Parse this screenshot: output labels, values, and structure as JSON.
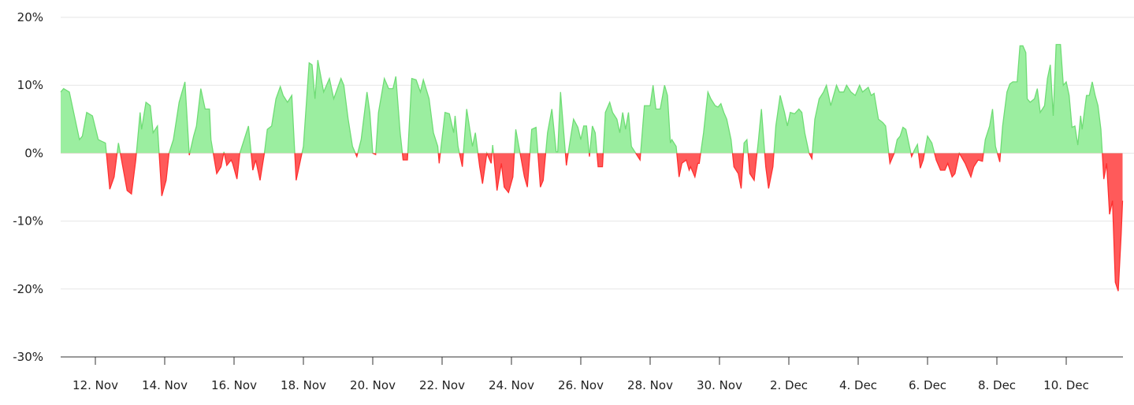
{
  "chart_data": {
    "type": "area",
    "title": "",
    "xlabel": "",
    "ylabel": "",
    "ylim": [
      -30,
      20
    ],
    "y_unit": "%",
    "y_ticks": [
      "20%",
      "10%",
      "0%",
      "-10%",
      "-20%",
      "-30%"
    ],
    "y_tick_values": [
      20,
      10,
      0,
      -10,
      -20,
      -30
    ],
    "x_ticks": [
      "12. Nov",
      "14. Nov",
      "16. Nov",
      "18. Nov",
      "20. Nov",
      "22. Nov",
      "24. Nov",
      "26. Nov",
      "28. Nov",
      "30. Nov",
      "2. Dec",
      "4. Dec",
      "6. Dec",
      "8. Dec",
      "10. Dec"
    ],
    "x_range": [
      "11 Nov 00:00",
      "11 Dec 15:00"
    ],
    "grid": true,
    "legend": "none",
    "colors": {
      "positive_fill": "#9beea0",
      "positive_line": "#6fdc75",
      "negative_fill": "#ff5a5a",
      "negative_line": "#ff3030",
      "grid": "#e6e6e6",
      "axis": "#333333"
    },
    "points": [
      [
        "11 Nov 00:00",
        9
      ],
      [
        "11 Nov 02:00",
        9.5
      ],
      [
        "11 Nov 06:00",
        9
      ],
      [
        "11 Nov 10:00",
        5
      ],
      [
        "11 Nov 13:00",
        2
      ],
      [
        "11 Nov 15:00",
        2.5
      ],
      [
        "11 Nov 18:00",
        6
      ],
      [
        "11 Nov 22:00",
        5.5
      ],
      [
        "12 Nov 02:00",
        2
      ],
      [
        "12 Nov 07:00",
        1.5
      ],
      [
        "12 Nov 10:00",
        -5.3
      ],
      [
        "12 Nov 13:00",
        -3.5
      ],
      [
        "12 Nov 16:00",
        1.5
      ],
      [
        "12 Nov 19:00",
        -2
      ],
      [
        "12 Nov 22:00",
        -5.5
      ],
      [
        "13 Nov 01:00",
        -6
      ],
      [
        "13 Nov 04:00",
        -1
      ],
      [
        "13 Nov 07:00",
        6
      ],
      [
        "13 Nov 08:00",
        3.5
      ],
      [
        "13 Nov 11:00",
        7.5
      ],
      [
        "13 Nov 14:00",
        7
      ],
      [
        "13 Nov 16:00",
        3
      ],
      [
        "13 Nov 19:00",
        4
      ],
      [
        "13 Nov 22:00",
        -6.3
      ],
      [
        "14 Nov 01:00",
        -4
      ],
      [
        "14 Nov 03:00",
        0
      ],
      [
        "14 Nov 06:00",
        2
      ],
      [
        "14 Nov 10:00",
        7.5
      ],
      [
        "14 Nov 14:00",
        10.5
      ],
      [
        "14 Nov 17:00",
        -0.3
      ],
      [
        "14 Nov 20:00",
        2.5
      ],
      [
        "14 Nov 22:00",
        4
      ],
      [
        "15 Nov 01:00",
        9.5
      ],
      [
        "15 Nov 04:00",
        6.5
      ],
      [
        "15 Nov 07:00",
        6.5
      ],
      [
        "15 Nov 08:00",
        2
      ],
      [
        "15 Nov 12:00",
        -3
      ],
      [
        "15 Nov 15:00",
        -2
      ],
      [
        "15 Nov 17:00",
        0.2
      ],
      [
        "15 Nov 19:00",
        -1.8
      ],
      [
        "15 Nov 22:00",
        -1
      ],
      [
        "15 Nov 23:00",
        -1.5
      ],
      [
        "16 Nov 02:00",
        -3.8
      ],
      [
        "16 Nov 04:00",
        0
      ],
      [
        "16 Nov 07:00",
        2
      ],
      [
        "16 Nov 10:00",
        4
      ],
      [
        "16 Nov 13:00",
        -2.5
      ],
      [
        "16 Nov 15:00",
        -1
      ],
      [
        "16 Nov 18:00",
        -4
      ],
      [
        "16 Nov 21:00",
        0
      ],
      [
        "16 Nov 23:00",
        3.5
      ],
      [
        "17 Nov 02:00",
        4
      ],
      [
        "17 Nov 05:00",
        8
      ],
      [
        "17 Nov 08:00",
        9.8
      ],
      [
        "17 Nov 10:00",
        8.5
      ],
      [
        "17 Nov 13:00",
        7.5
      ],
      [
        "17 Nov 16:00",
        8.5
      ],
      [
        "17 Nov 19:00",
        -4
      ],
      [
        "17 Nov 21:00",
        -2
      ],
      [
        "18 Nov 00:00",
        1
      ],
      [
        "18 Nov 04:00",
        13.3
      ],
      [
        "18 Nov 06:00",
        13
      ],
      [
        "18 Nov 08:00",
        8
      ],
      [
        "18 Nov 10:00",
        13.7
      ],
      [
        "18 Nov 14:00",
        9
      ],
      [
        "18 Nov 18:00",
        11
      ],
      [
        "18 Nov 21:00",
        8
      ],
      [
        "19 Nov 02:00",
        11
      ],
      [
        "19 Nov 04:00",
        10
      ],
      [
        "19 Nov 07:00",
        5
      ],
      [
        "19 Nov 10:00",
        1
      ],
      [
        "19 Nov 13:00",
        -0.5
      ],
      [
        "19 Nov 16:00",
        2
      ],
      [
        "19 Nov 20:00",
        9
      ],
      [
        "19 Nov 22:00",
        6
      ],
      [
        "20 Nov 00:00",
        0
      ],
      [
        "20 Nov 02:00",
        -0.2
      ],
      [
        "20 Nov 04:00",
        6
      ],
      [
        "20 Nov 08:00",
        11
      ],
      [
        "20 Nov 11:00",
        9.5
      ],
      [
        "20 Nov 14:00",
        9.5
      ],
      [
        "20 Nov 16:00",
        11.3
      ],
      [
        "20 Nov 19:00",
        3
      ],
      [
        "20 Nov 21:00",
        -1
      ],
      [
        "21 Nov 00:00",
        -1
      ],
      [
        "21 Nov 03:00",
        11
      ],
      [
        "21 Nov 06:00",
        10.8
      ],
      [
        "21 Nov 09:00",
        9
      ],
      [
        "21 Nov 11:00",
        10.8
      ],
      [
        "21 Nov 15:00",
        8
      ],
      [
        "21 Nov 18:00",
        3
      ],
      [
        "21 Nov 21:00",
        1
      ],
      [
        "21 Nov 22:00",
        -1.5
      ],
      [
        "22 Nov 02:00",
        6
      ],
      [
        "22 Nov 05:00",
        5.8
      ],
      [
        "22 Nov 08:00",
        3
      ],
      [
        "22 Nov 09:00",
        5.5
      ],
      [
        "22 Nov 11:00",
        1
      ],
      [
        "22 Nov 14:00",
        -2
      ],
      [
        "22 Nov 17:00",
        6.5
      ],
      [
        "22 Nov 21:00",
        1
      ],
      [
        "22 Nov 23:00",
        3
      ],
      [
        "23 Nov 02:00",
        -2
      ],
      [
        "23 Nov 04:00",
        -4.5
      ],
      [
        "23 Nov 07:00",
        0
      ],
      [
        "23 Nov 10:00",
        -1.5
      ],
      [
        "23 Nov 11:00",
        1.2
      ],
      [
        "23 Nov 14:00",
        -5.5
      ],
      [
        "23 Nov 17:00",
        -1.5
      ],
      [
        "23 Nov 19:00",
        -5
      ],
      [
        "23 Nov 22:00",
        -5.8
      ],
      [
        "24 Nov 01:00",
        -3.5
      ],
      [
        "24 Nov 03:00",
        3.5
      ],
      [
        "24 Nov 06:00",
        0
      ],
      [
        "24 Nov 09:00",
        -3.5
      ],
      [
        "24 Nov 11:00",
        -5
      ],
      [
        "24 Nov 14:00",
        3.5
      ],
      [
        "24 Nov 17:00",
        3.8
      ],
      [
        "24 Nov 20:00",
        -5
      ],
      [
        "24 Nov 22:00",
        -4
      ],
      [
        "25 Nov 01:00",
        3
      ],
      [
        "25 Nov 04:00",
        6.5
      ],
      [
        "25 Nov 07:00",
        0.2
      ],
      [
        "25 Nov 08:00",
        0.2
      ],
      [
        "25 Nov 10:00",
        9
      ],
      [
        "25 Nov 14:00",
        -1.8
      ],
      [
        "25 Nov 16:00",
        1
      ],
      [
        "25 Nov 19:00",
        5
      ],
      [
        "25 Nov 22:00",
        3.8
      ],
      [
        "26 Nov 00:00",
        2
      ],
      [
        "26 Nov 02:00",
        4
      ],
      [
        "26 Nov 04:00",
        4
      ],
      [
        "26 Nov 06:00",
        -0.5
      ],
      [
        "26 Nov 08:00",
        4
      ],
      [
        "26 Nov 10:00",
        3
      ],
      [
        "26 Nov 12:00",
        -2
      ],
      [
        "26 Nov 15:00",
        -2
      ],
      [
        "26 Nov 17:00",
        6
      ],
      [
        "26 Nov 20:00",
        7.5
      ],
      [
        "26 Nov 22:00",
        6
      ],
      [
        "27 Nov 01:00",
        5
      ],
      [
        "27 Nov 03:00",
        3
      ],
      [
        "27 Nov 05:00",
        6
      ],
      [
        "27 Nov 07:00",
        3.5
      ],
      [
        "27 Nov 09:00",
        6
      ],
      [
        "27 Nov 11:00",
        1
      ],
      [
        "27 Nov 14:00",
        0
      ],
      [
        "27 Nov 17:00",
        -1
      ],
      [
        "27 Nov 20:00",
        7
      ],
      [
        "28 Nov 00:00",
        7
      ],
      [
        "28 Nov 02:00",
        10
      ],
      [
        "28 Nov 04:00",
        6.5
      ],
      [
        "28 Nov 07:00",
        6.5
      ],
      [
        "28 Nov 10:00",
        10
      ],
      [
        "28 Nov 12:00",
        8.5
      ],
      [
        "28 Nov 14:00",
        1.5
      ],
      [
        "28 Nov 15:00",
        2
      ],
      [
        "28 Nov 18:00",
        1
      ],
      [
        "28 Nov 20:00",
        -3.5
      ],
      [
        "28 Nov 22:00",
        -1.5
      ],
      [
        "29 Nov 01:00",
        -1
      ],
      [
        "29 Nov 03:00",
        -2.5
      ],
      [
        "29 Nov 04:00",
        -2
      ],
      [
        "29 Nov 07:00",
        -3.5
      ],
      [
        "29 Nov 09:00",
        -1.5
      ],
      [
        "29 Nov 10:00",
        -1.5
      ],
      [
        "29 Nov 13:00",
        3
      ],
      [
        "29 Nov 16:00",
        9
      ],
      [
        "29 Nov 18:00",
        8
      ],
      [
        "29 Nov 21:00",
        7
      ],
      [
        "29 Nov 23:00",
        6.8
      ],
      [
        "30 Nov 01:00",
        7.3
      ],
      [
        "30 Nov 03:00",
        6
      ],
      [
        "30 Nov 05:00",
        5
      ],
      [
        "30 Nov 08:00",
        2
      ],
      [
        "30 Nov 10:00",
        -2
      ],
      [
        "30 Nov 13:00",
        -3
      ],
      [
        "30 Nov 15:00",
        -5.2
      ],
      [
        "30 Nov 17:00",
        1.5
      ],
      [
        "30 Nov 19:00",
        2
      ],
      [
        "30 Nov 21:00",
        -3
      ],
      [
        "1 Dec 00:00",
        -4
      ],
      [
        "1 Dec 03:00",
        2
      ],
      [
        "1 Dec 05:00",
        6.5
      ],
      [
        "1 Dec 08:00",
        -2
      ],
      [
        "1 Dec 10:00",
        -5.2
      ],
      [
        "1 Dec 13:00",
        -2
      ],
      [
        "1 Dec 15:00",
        4
      ],
      [
        "1 Dec 18:00",
        8.5
      ],
      [
        "1 Dec 21:00",
        6
      ],
      [
        "1 Dec 23:00",
        4
      ],
      [
        "2 Dec 01:00",
        6
      ],
      [
        "2 Dec 04:00",
        5.8
      ],
      [
        "2 Dec 07:00",
        6.5
      ],
      [
        "2 Dec 09:00",
        6
      ],
      [
        "2 Dec 11:00",
        3
      ],
      [
        "2 Dec 14:00",
        0
      ],
      [
        "2 Dec 16:00",
        -0.8
      ],
      [
        "2 Dec 18:00",
        5
      ],
      [
        "2 Dec 21:00",
        8
      ],
      [
        "3 Dec 00:00",
        9
      ],
      [
        "3 Dec 02:00",
        10
      ],
      [
        "3 Dec 05:00",
        7
      ],
      [
        "3 Dec 09:00",
        10
      ],
      [
        "3 Dec 11:00",
        9
      ],
      [
        "3 Dec 14:00",
        9
      ],
      [
        "3 Dec 16:00",
        10
      ],
      [
        "3 Dec 19:00",
        9
      ],
      [
        "3 Dec 22:00",
        8.5
      ],
      [
        "4 Dec 01:00",
        10
      ],
      [
        "4 Dec 03:00",
        9
      ],
      [
        "4 Dec 07:00",
        9.7
      ],
      [
        "4 Dec 09:00",
        8.5
      ],
      [
        "4 Dec 11:00",
        8.8
      ],
      [
        "4 Dec 14:00",
        5
      ],
      [
        "4 Dec 17:00",
        4.5
      ],
      [
        "4 Dec 19:00",
        4
      ],
      [
        "4 Dec 22:00",
        -1.5
      ],
      [
        "5 Dec 01:00",
        0
      ],
      [
        "5 Dec 03:00",
        2
      ],
      [
        "5 Dec 05:00",
        2.5
      ],
      [
        "5 Dec 07:00",
        3.8
      ],
      [
        "5 Dec 09:00",
        3.5
      ],
      [
        "5 Dec 13:00",
        -0.5
      ],
      [
        "5 Dec 15:00",
        0.5
      ],
      [
        "5 Dec 17:00",
        1.3
      ],
      [
        "5 Dec 19:00",
        -2.2
      ],
      [
        "5 Dec 21:00",
        -1
      ],
      [
        "6 Dec 00:00",
        2.5
      ],
      [
        "6 Dec 03:00",
        1.5
      ],
      [
        "6 Dec 06:00",
        -1
      ],
      [
        "6 Dec 09:00",
        -2.5
      ],
      [
        "6 Dec 12:00",
        -2.5
      ],
      [
        "6 Dec 14:00",
        -1.5
      ],
      [
        "6 Dec 17:00",
        -3.5
      ],
      [
        "6 Dec 19:00",
        -3
      ],
      [
        "6 Dec 22:00",
        0
      ],
      [
        "7 Dec 02:00",
        -1.5
      ],
      [
        "7 Dec 06:00",
        -3.5
      ],
      [
        "7 Dec 08:00",
        -2
      ],
      [
        "7 Dec 11:00",
        -1
      ],
      [
        "7 Dec 14:00",
        -1.2
      ],
      [
        "7 Dec 16:00",
        2
      ],
      [
        "7 Dec 19:00",
        4
      ],
      [
        "7 Dec 21:00",
        6.5
      ],
      [
        "7 Dec 23:00",
        1
      ],
      [
        "8 Dec 02:00",
        -1.3
      ],
      [
        "8 Dec 04:00",
        4
      ],
      [
        "8 Dec 07:00",
        9
      ],
      [
        "8 Dec 09:00",
        10.2
      ],
      [
        "8 Dec 11:00",
        10.5
      ],
      [
        "8 Dec 14:00",
        10.5
      ],
      [
        "8 Dec 16:00",
        15.8
      ],
      [
        "8 Dec 18:00",
        15.8
      ],
      [
        "8 Dec 20:00",
        14.8
      ],
      [
        "8 Dec 21:00",
        8
      ],
      [
        "8 Dec 23:00",
        7.5
      ],
      [
        "9 Dec 02:00",
        8
      ],
      [
        "9 Dec 04:00",
        9.5
      ],
      [
        "9 Dec 06:00",
        6
      ],
      [
        "9 Dec 09:00",
        7
      ],
      [
        "9 Dec 11:00",
        11
      ],
      [
        "9 Dec 13:00",
        13
      ],
      [
        "9 Dec 15:00",
        5.5
      ],
      [
        "9 Dec 17:00",
        16
      ],
      [
        "9 Dec 20:00",
        16
      ],
      [
        "9 Dec 22:00",
        10
      ],
      [
        "10 Dec 00:00",
        10.5
      ],
      [
        "10 Dec 02:00",
        8.5
      ],
      [
        "10 Dec 04:00",
        3.8
      ],
      [
        "10 Dec 06:00",
        4
      ],
      [
        "10 Dec 08:00",
        1.2
      ],
      [
        "10 Dec 10:00",
        5.5
      ],
      [
        "10 Dec 11:00",
        3.5
      ],
      [
        "10 Dec 14:00",
        8.5
      ],
      [
        "10 Dec 16:00",
        8.5
      ],
      [
        "10 Dec 18:00",
        10.5
      ],
      [
        "10 Dec 20:00",
        8.5
      ],
      [
        "10 Dec 22:00",
        7
      ],
      [
        "11 Dec 00:00",
        3.5
      ],
      [
        "11 Dec 02:00",
        -3.8
      ],
      [
        "11 Dec 04:00",
        -1.5
      ],
      [
        "11 Dec 06:00",
        -9
      ],
      [
        "11 Dec 08:00",
        -7
      ],
      [
        "11 Dec 10:00",
        -19
      ],
      [
        "11 Dec 12:00",
        -20.3
      ],
      [
        "11 Dec 14:00",
        -12
      ],
      [
        "11 Dec 15:00",
        -7
      ]
    ]
  }
}
